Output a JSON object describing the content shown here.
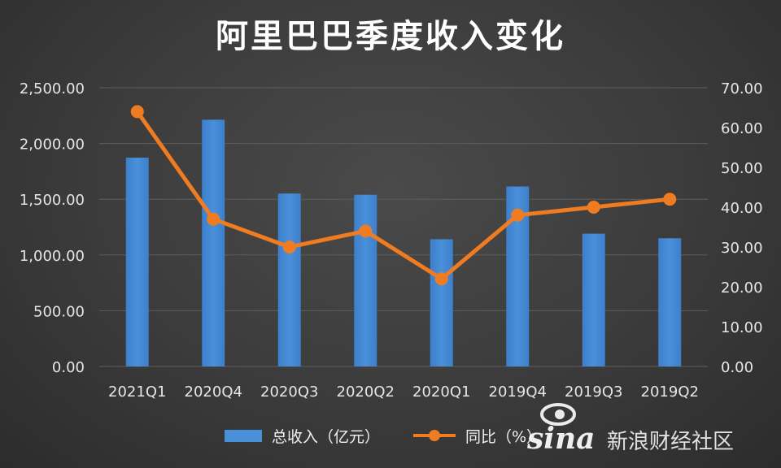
{
  "chart_data": {
    "type": "bar",
    "title": "阿里巴巴季度收入变化",
    "categories": [
      "2021Q1",
      "2020Q4",
      "2020Q3",
      "2020Q2",
      "2020Q1",
      "2019Q4",
      "2019Q3",
      "2019Q2"
    ],
    "series": [
      {
        "name": "总收入（亿元）",
        "type": "bar",
        "axis": "left",
        "color": "#4a90d9",
        "values": [
          1873,
          2213,
          1551,
          1540,
          1141,
          1614,
          1191,
          1150
        ]
      },
      {
        "name": "同比（%）",
        "type": "line",
        "axis": "right",
        "color": "#f07c22",
        "values": [
          64,
          37,
          30,
          34,
          22,
          38,
          40,
          42
        ]
      }
    ],
    "y_left": {
      "range": [
        0,
        2500
      ],
      "ticks": [
        "0.00",
        "500.00",
        "1,000.00",
        "1,500.00",
        "2,000.00",
        "2,500.00"
      ]
    },
    "y_right": {
      "range": [
        0,
        70
      ],
      "ticks": [
        "0.00",
        "10.00",
        "20.00",
        "30.00",
        "40.00",
        "50.00",
        "60.00",
        "70.00"
      ]
    },
    "grid": true,
    "legend_position": "bottom"
  },
  "watermark": {
    "logo": "sina",
    "text": "新浪财经社区"
  }
}
